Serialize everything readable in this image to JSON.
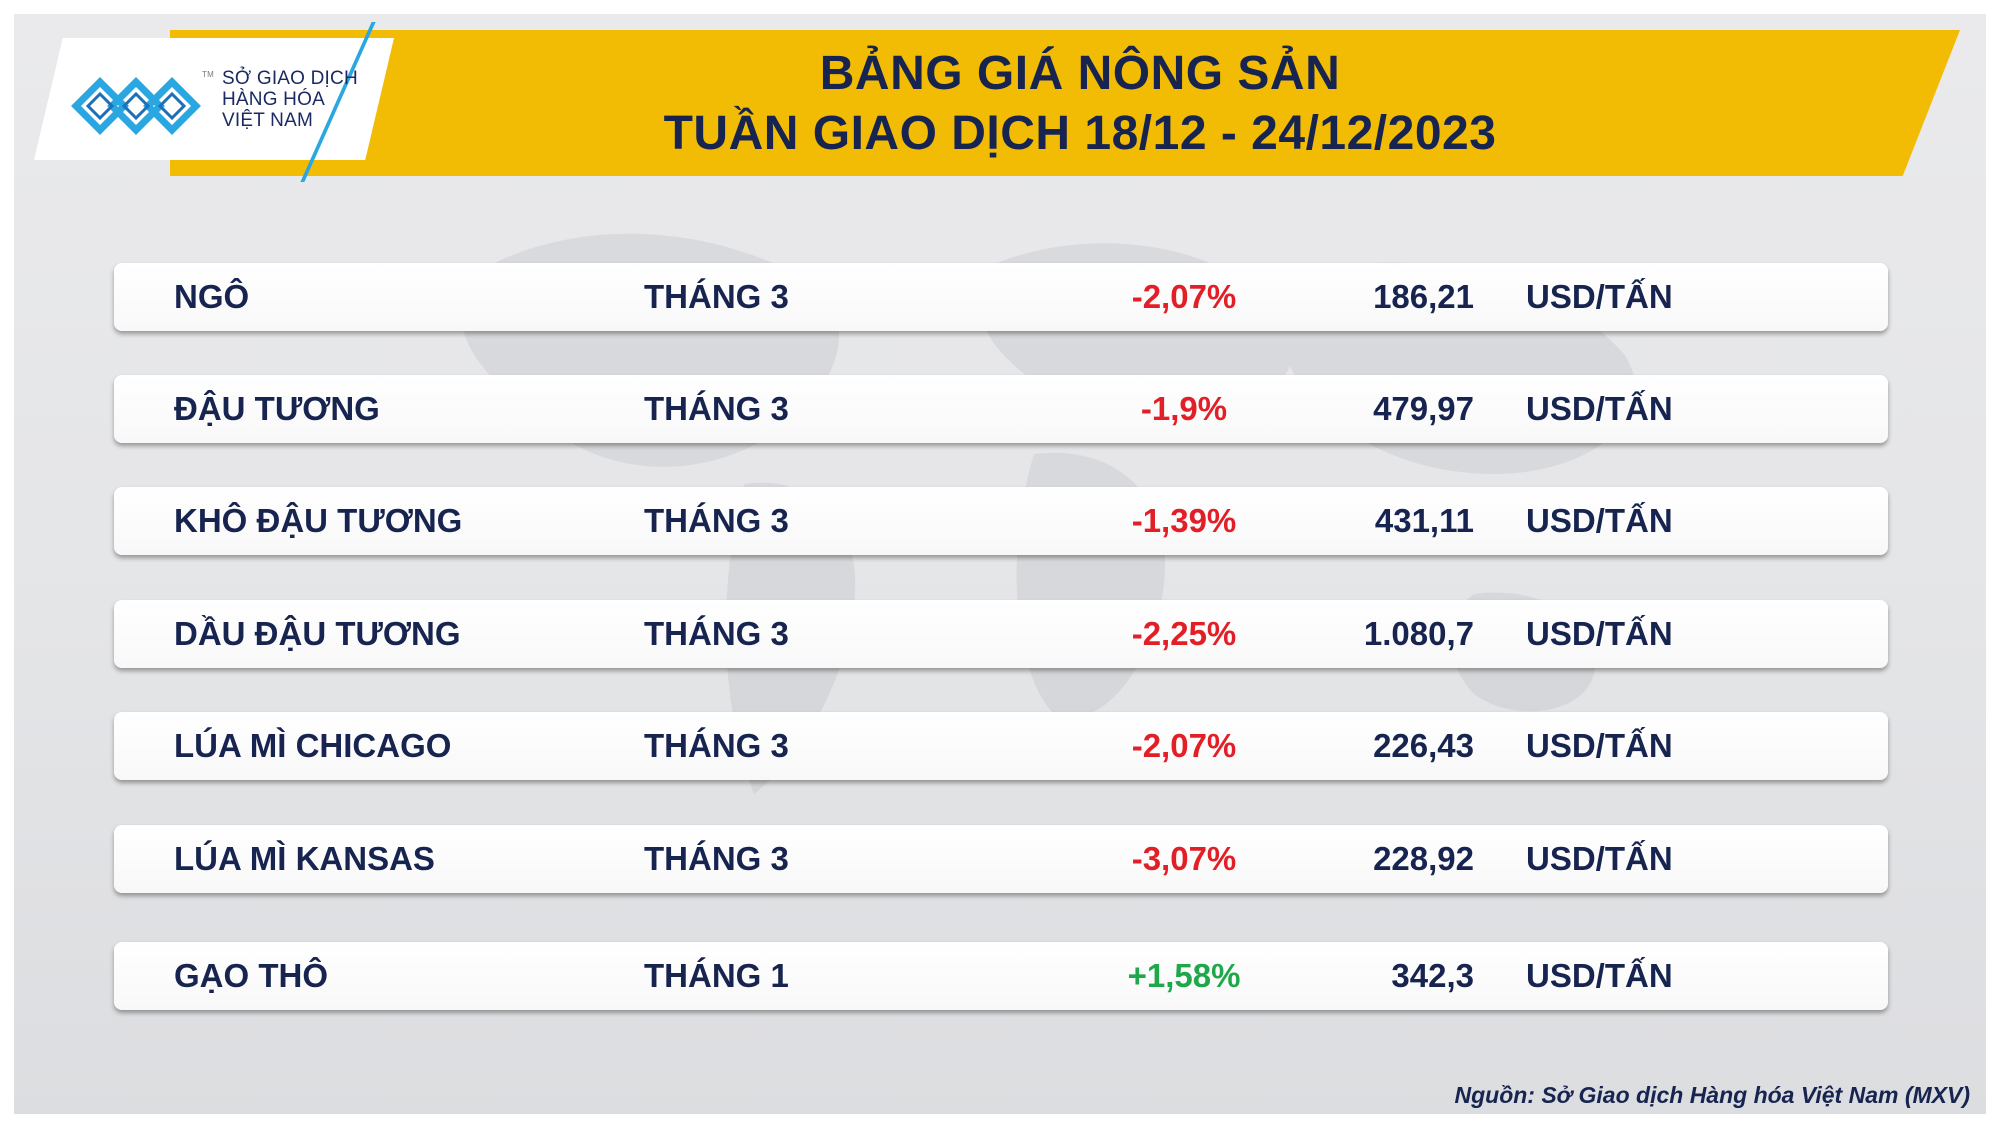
{
  "logo": {
    "line1": "SỞ GIAO DỊCH",
    "line2": "HÀNG HÓA",
    "line3": "VIỆT NAM",
    "tm": "TM"
  },
  "title": {
    "line1": "BẢNG GIÁ NÔNG SẢN",
    "line2": "TUẦN GIAO DỊCH 18/12 - 24/12/2023"
  },
  "colors": {
    "banner": "#f2bc05",
    "text_dark": "#17244f",
    "negative": "#e21f26",
    "positive": "#1fa84a",
    "logo_blue": "#2aa6e0"
  },
  "table": {
    "rows": [
      {
        "name": "NGÔ",
        "month": "THÁNG 3",
        "change": "-2,07%",
        "direction": "negative",
        "price": "186,21",
        "unit": "USD/TẤN"
      },
      {
        "name": "ĐẬU TƯƠNG",
        "month": "THÁNG 3",
        "change": "-1,9%",
        "direction": "negative",
        "price": "479,97",
        "unit": "USD/TẤN"
      },
      {
        "name": "KHÔ ĐẬU TƯƠNG",
        "month": "THÁNG 3",
        "change": "-1,39%",
        "direction": "negative",
        "price": "431,11",
        "unit": "USD/TẤN"
      },
      {
        "name": "DẦU ĐẬU TƯƠNG",
        "month": "THÁNG 3",
        "change": "-2,25%",
        "direction": "negative",
        "price": "1.080,7",
        "unit": "USD/TẤN"
      },
      {
        "name": "LÚA MÌ CHICAGO",
        "month": "THÁNG 3",
        "change": "-2,07%",
        "direction": "negative",
        "price": "226,43",
        "unit": "USD/TẤN"
      },
      {
        "name": "LÚA MÌ KANSAS",
        "month": "THÁNG 3",
        "change": "-3,07%",
        "direction": "negative",
        "price": "228,92",
        "unit": "USD/TẤN"
      },
      {
        "name": "GẠO THÔ",
        "month": "THÁNG 1",
        "change": "+1,58%",
        "direction": "positive",
        "price": "342,3",
        "unit": "USD/TẤN"
      }
    ]
  },
  "source": "Nguồn: Sở Giao dịch Hàng hóa Việt Nam (MXV)"
}
